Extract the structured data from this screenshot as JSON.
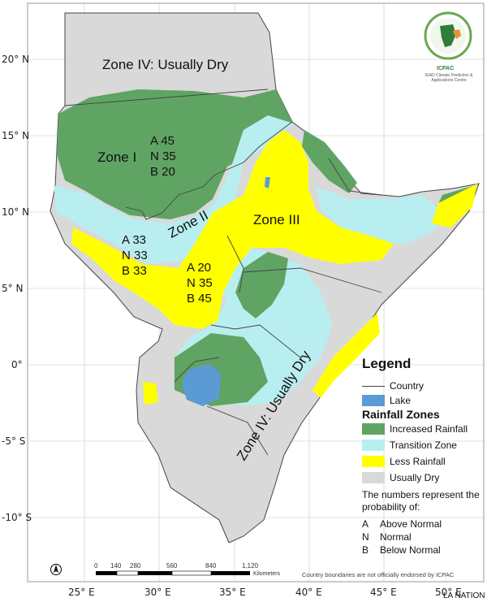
{
  "map": {
    "zones": {
      "zone4_north": "Zone IV:  Usually Dry",
      "zone1": "Zone I",
      "zone2": "Zone II",
      "zone3": "Zone III",
      "zone4_south": "Zone IV:  Usually Dry"
    },
    "probabilities": {
      "zone1": "A 45\nN 35\nB 20",
      "zone2": "A 33\nN 33\nB 33",
      "zone3": "A 20\nN 35\nB 45"
    },
    "latitude_labels": [
      "20° N",
      "15° N",
      "10° N",
      "5° N",
      "0°",
      "-5° S",
      "-10° S"
    ],
    "longitude_labels": [
      "25° E",
      "30° E",
      "35° E",
      "40° E",
      "45° E",
      "50° E"
    ],
    "colors": {
      "increased_rainfall": "#5fa463",
      "transition_zone": "#b8eef0",
      "less_rainfall": "#ffff00",
      "usually_dry": "#d9d9d9",
      "lake": "#5b9bd5",
      "country_line": "#444444"
    }
  },
  "legend": {
    "title": "Legend",
    "country": "Country",
    "lake": "Lake",
    "zones_heading": "Rainfall Zones",
    "increased": "Increased Rainfall",
    "transition": "Transition Zone",
    "less": "Less Rainfall",
    "dry": "Usually Dry",
    "note": "The numbers represent the probability of:",
    "keys": [
      {
        "key": "A",
        "label": "Above Normal"
      },
      {
        "key": "N",
        "label": "Normal"
      },
      {
        "key": "B",
        "label": "Below Normal"
      }
    ]
  },
  "scale": {
    "ticks": [
      "0",
      "140",
      "280",
      "560",
      "840",
      "1,120"
    ],
    "unit": "Kilometers"
  },
  "disclaimer": "Country boundaries are not officially endorsed by ICPAC",
  "logo": {
    "name": "ICPAC",
    "subtitle": "IGAD Climate Prediction & Applications Centre"
  },
  "watermark": "LA NATION",
  "north_arrow": "north-arrow-icon"
}
